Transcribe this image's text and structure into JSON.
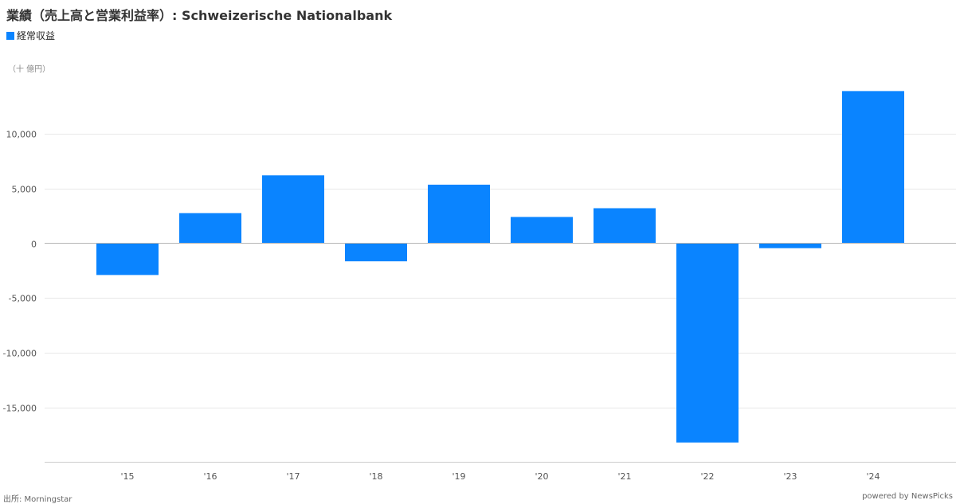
{
  "title": "業績（売上高と営業利益率）: Schweizerische Nationalbank",
  "legend": {
    "label": "経常収益",
    "color": "#0a84ff"
  },
  "unit_label": "（十 億円）",
  "source": "出所: Morningstar",
  "credit": "powered by NewsPicks",
  "colors": {
    "bar": "#0a84ff",
    "grid": "#e8e8e8",
    "zero_line": "#b5b5b5",
    "axis_line": "#cccccc",
    "tick_text": "#555555"
  },
  "chart_data": {
    "type": "bar",
    "categories": [
      "'15",
      "'16",
      "'17",
      "'18",
      "'19",
      "'20",
      "'21",
      "'22",
      "'23",
      "'24"
    ],
    "series": [
      {
        "name": "経常収益",
        "values": [
          -2900,
          2750,
          6200,
          -1650,
          5350,
          2400,
          3200,
          -18200,
          -450,
          13900
        ]
      }
    ],
    "y_ticks": [
      10000,
      5000,
      0,
      -5000,
      -10000,
      -15000
    ],
    "y_tick_labels": [
      "10,000",
      "5,000",
      "0",
      "-5,000",
      "-10,000",
      "-15,000"
    ],
    "ylim": [
      -20000,
      17000
    ],
    "grid": true,
    "legend_position": "top-left"
  }
}
